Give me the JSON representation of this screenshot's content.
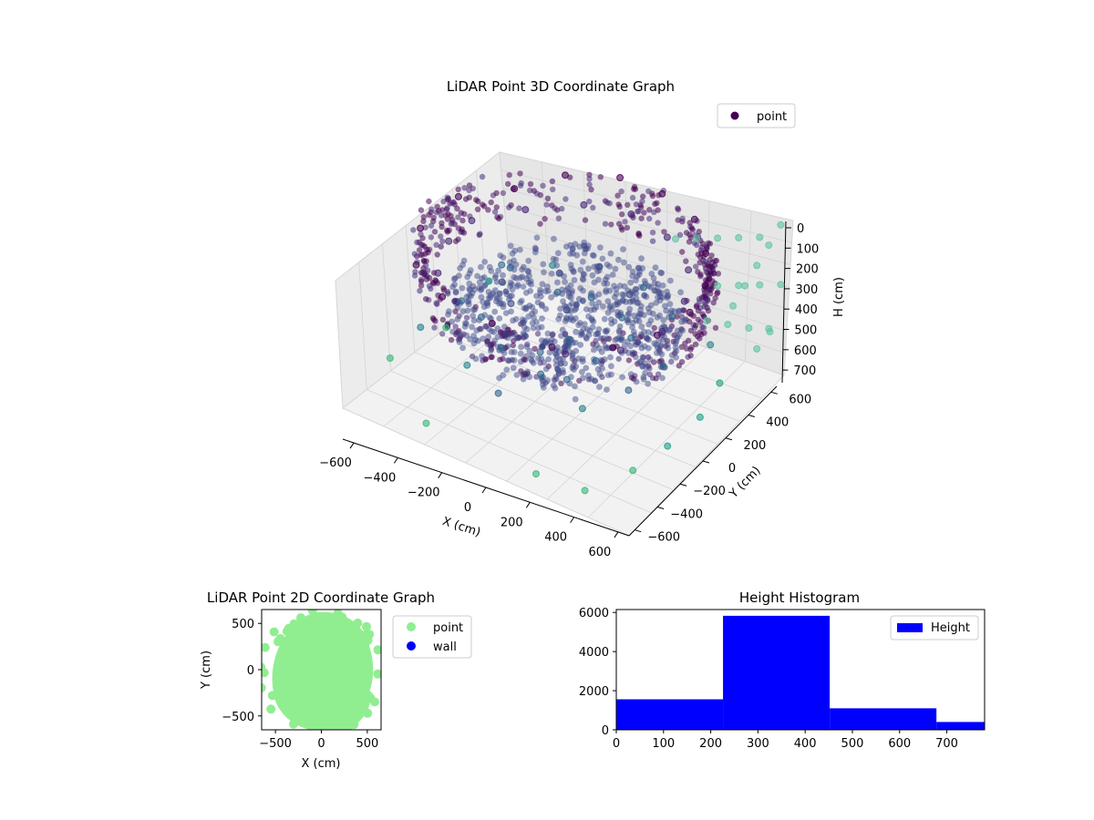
{
  "chart_data": [
    {
      "type": "scatter",
      "title": "LiDAR Point 3D Coordinate Graph",
      "xlabel": "X (cm)",
      "ylabel": "Y (cm)",
      "zlabel": "H (cm)",
      "x_ticks": [
        "−600",
        "−400",
        "−200",
        "0",
        "200",
        "400",
        "600"
      ],
      "y_ticks": [
        "−600",
        "−400",
        "−200",
        "0",
        "200",
        "400",
        "600"
      ],
      "z_ticks": [
        "0",
        "100",
        "200",
        "300",
        "400",
        "500",
        "600",
        "700"
      ],
      "xlim": [
        -650,
        650
      ],
      "ylim": [
        -650,
        650
      ],
      "zlim": [
        0,
        780
      ],
      "z_inverted": true,
      "legend": {
        "placement": "top-right",
        "entries": [
          {
            "label": "point",
            "color": "#440154"
          }
        ]
      },
      "series": [
        {
          "name": "point",
          "colormap": "viridis",
          "description_points": "dense ring of LiDAR returns ~600cm radius with walls; sparse outliers",
          "points": [
            [
              -550,
              80,
              40
            ],
            [
              -420,
              300,
              60
            ],
            [
              -300,
              500,
              50
            ],
            [
              -100,
              600,
              40
            ],
            [
              100,
              600,
              45
            ],
            [
              300,
              520,
              50
            ],
            [
              450,
              350,
              60
            ],
            [
              560,
              150,
              55
            ],
            [
              600,
              -50,
              50
            ],
            [
              560,
              -250,
              60
            ],
            [
              450,
              -420,
              70
            ],
            [
              250,
              -560,
              80
            ],
            [
              0,
              -600,
              60
            ],
            [
              -250,
              -560,
              70
            ],
            [
              -450,
              -420,
              80
            ],
            [
              -560,
              -200,
              60
            ],
            [
              -500,
              100,
              150
            ],
            [
              -380,
              320,
              160
            ],
            [
              -200,
              480,
              150
            ],
            [
              0,
              520,
              140
            ],
            [
              200,
              470,
              150
            ],
            [
              380,
              330,
              160
            ],
            [
              480,
              120,
              150
            ],
            [
              500,
              -100,
              160
            ],
            [
              420,
              -300,
              170
            ],
            [
              250,
              -450,
              180
            ],
            [
              0,
              -500,
              170
            ],
            [
              -250,
              -440,
              160
            ],
            [
              -420,
              -300,
              170
            ],
            [
              -500,
              -80,
              160
            ],
            [
              -300,
              0,
              320
            ],
            [
              -200,
              -100,
              330
            ],
            [
              -100,
              100,
              340
            ],
            [
              0,
              0,
              330
            ],
            [
              100,
              -150,
              350
            ],
            [
              200,
              100,
              340
            ],
            [
              -150,
              200,
              320
            ],
            [
              150,
              250,
              330
            ],
            [
              -250,
              -250,
              340
            ],
            [
              50,
              -300,
              350
            ],
            [
              250,
              -200,
              360
            ],
            [
              -350,
              150,
              350
            ],
            [
              300,
              0,
              340
            ],
            [
              -50,
              350,
              330
            ],
            [
              120,
              -420,
              360
            ],
            [
              -400,
              -150,
              380
            ],
            [
              350,
              250,
              360
            ],
            [
              -100,
              -350,
              370
            ],
            [
              0,
              200,
              380
            ],
            [
              200,
              -350,
              390
            ],
            [
              -450,
              250,
              430
            ],
            [
              -300,
              400,
              450
            ],
            [
              400,
              -200,
              440
            ],
            [
              450,
              0,
              420
            ],
            [
              100,
              450,
              430
            ],
            [
              -200,
              -450,
              450
            ],
            [
              300,
              -400,
              460
            ],
            [
              -500,
              -300,
              480
            ],
            [
              500,
              300,
              470
            ],
            [
              0,
              -550,
              440
            ],
            [
              600,
              200,
              560
            ],
            [
              620,
              0,
              600
            ],
            [
              580,
              -200,
              640
            ],
            [
              520,
              -380,
              680
            ],
            [
              -600,
              400,
              650
            ],
            [
              -640,
              -300,
              700
            ],
            [
              -620,
              100,
              740
            ],
            [
              200,
              -600,
              720
            ],
            [
              -300,
              -600,
              710
            ],
            [
              400,
              -560,
              730
            ]
          ]
        },
        {
          "name": "",
          "color": "#5ec4a0",
          "description_points": "grid-like wall returns in the +X/+Y corner",
          "points": [
            [
              640,
              640,
              20
            ],
            [
              640,
              540,
              60
            ],
            [
              640,
              440,
              100
            ],
            [
              640,
              340,
              140
            ],
            [
              640,
              240,
              180
            ],
            [
              540,
              640,
              120
            ],
            [
              440,
              640,
              160
            ],
            [
              340,
              640,
              200
            ],
            [
              240,
              640,
              240
            ],
            [
              140,
              640,
              280
            ],
            [
              640,
              640,
              320
            ],
            [
              540,
              640,
              360
            ],
            [
              440,
              640,
              400
            ],
            [
              340,
              640,
              440
            ],
            [
              640,
              540,
              480
            ],
            [
              640,
              440,
              520
            ],
            [
              600,
              620,
              560
            ],
            [
              500,
              620,
              580
            ],
            [
              400,
              620,
              600
            ],
            [
              300,
              620,
              620
            ]
          ]
        }
      ]
    },
    {
      "type": "scatter",
      "title": "LiDAR Point 2D Coordinate Graph",
      "xlabel": "X (cm)",
      "ylabel": "Y (cm)",
      "x_ticks": [
        "−500",
        "0",
        "500"
      ],
      "y_ticks": [
        "500",
        "0",
        "−500"
      ],
      "xlim": [
        -650,
        650
      ],
      "ylim": [
        -650,
        650
      ],
      "legend": {
        "placement": "right-outside",
        "entries": [
          {
            "label": "point",
            "color": "#90ee90"
          },
          {
            "label": "wall",
            "color": "#0000ff"
          }
        ]
      },
      "series": [
        {
          "name": "point",
          "color": "#90ee90"
        },
        {
          "name": "wall",
          "color": "#0000ff",
          "points": []
        }
      ]
    },
    {
      "type": "bar",
      "title": "Height Histogram",
      "x_ticks": [
        "0",
        "100",
        "200",
        "300",
        "400",
        "500",
        "600",
        "700"
      ],
      "y_ticks": [
        "0",
        "2000",
        "4000",
        "6000"
      ],
      "xlim": [
        0,
        780
      ],
      "ylim": [
        0,
        6150
      ],
      "legend": {
        "placement": "top-right",
        "entries": [
          {
            "label": "Height",
            "color": "#0000ff"
          }
        ]
      },
      "bins": [
        {
          "x0": 0,
          "x1": 226,
          "count": 1560
        },
        {
          "x0": 226,
          "x1": 452,
          "count": 5830
        },
        {
          "x0": 452,
          "x1": 678,
          "count": 1100
        },
        {
          "x0": 678,
          "x1": 780,
          "count": 400
        }
      ],
      "color": "#0000ff"
    }
  ]
}
